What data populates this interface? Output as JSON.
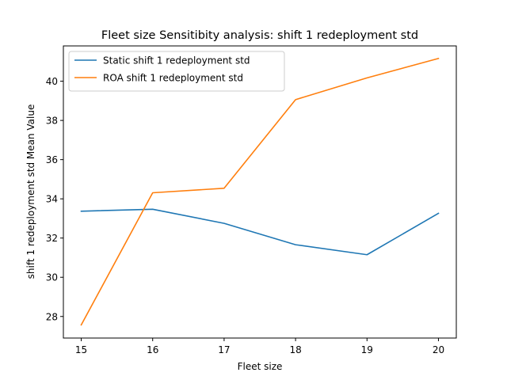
{
  "chart_data": {
    "type": "line",
    "title": "Fleet size Sensitibity analysis: shift 1 redeployment std",
    "xlabel": "Fleet size",
    "ylabel": "shift 1 redeployment std Mean Value",
    "x": [
      15,
      16,
      17,
      18,
      19,
      20
    ],
    "xlim": [
      14.75,
      20.25
    ],
    "ylim": [
      26.9,
      41.8
    ],
    "xticks": [
      15,
      16,
      17,
      18,
      19,
      20
    ],
    "yticks": [
      28,
      30,
      32,
      34,
      36,
      38,
      40
    ],
    "grid": false,
    "legend_position": "upper-left",
    "series": [
      {
        "name": "Static shift 1 redeployment std",
        "color": "#1f77b4",
        "values": [
          33.37,
          33.47,
          32.75,
          31.66,
          31.15,
          33.26
        ]
      },
      {
        "name": "ROA shift 1 redeployment std",
        "color": "#ff7f0e",
        "values": [
          27.57,
          34.31,
          34.54,
          39.06,
          40.17,
          41.16
        ]
      }
    ]
  }
}
